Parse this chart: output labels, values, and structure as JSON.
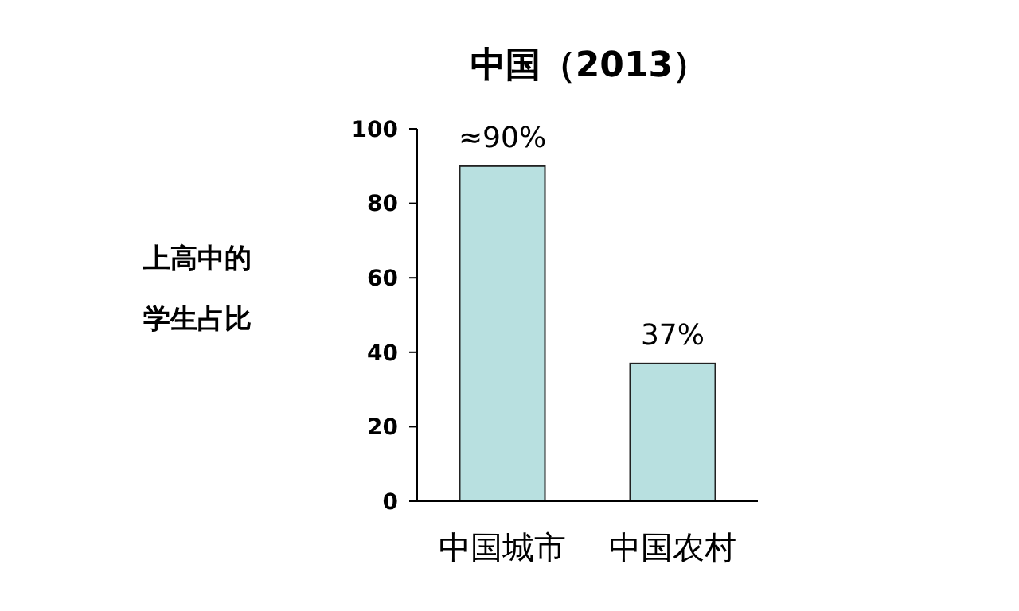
{
  "chart_data": {
    "type": "bar",
    "title": "中国（2013）",
    "ylabel": "上高中的学生占比",
    "categories": [
      "中国城市",
      "中国农村"
    ],
    "values": [
      90,
      37
    ],
    "value_labels": [
      "≈90%",
      "37%"
    ],
    "color": "#b8e0e0",
    "ylim": [
      0,
      100
    ],
    "yticks": [
      0,
      20,
      40,
      60,
      80,
      100
    ],
    "grid": false
  }
}
